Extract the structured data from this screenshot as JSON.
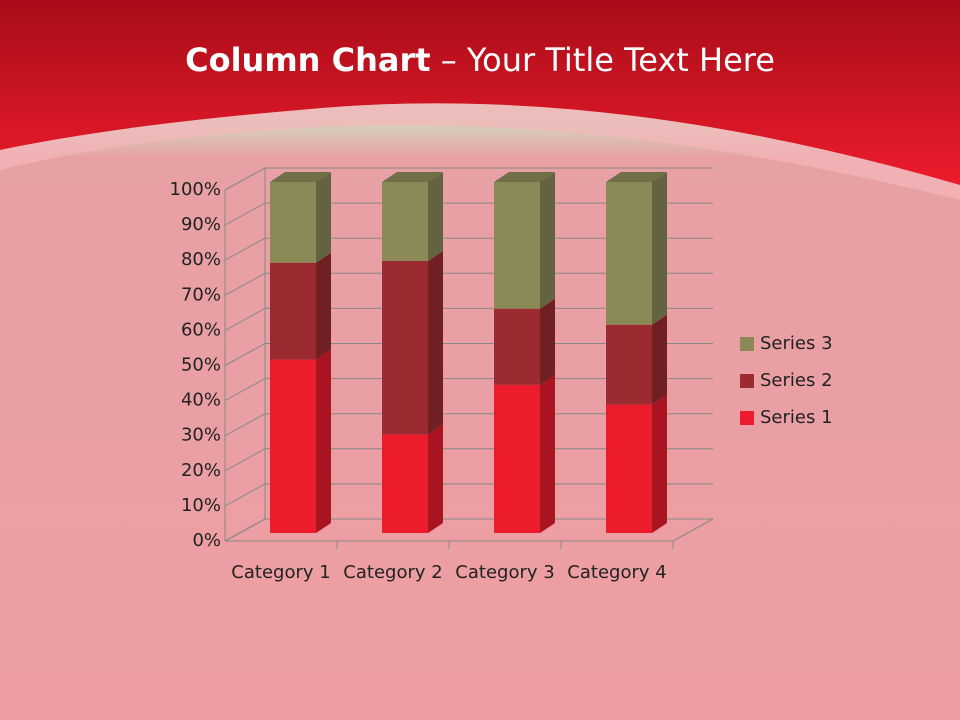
{
  "chart_data": {
    "type": "bar",
    "stacked": "percent",
    "title": [
      "Column Chart",
      "– Your Title Text Here"
    ],
    "categories": [
      "Category 1",
      "Category 2",
      "Category 3",
      "Category 4"
    ],
    "series": [
      {
        "name": "Series 1",
        "color": "#ec1c2c",
        "values": [
          49.4,
          28.1,
          42.2,
          36.6
        ]
      },
      {
        "name": "Series 2",
        "color": "#9b2b30",
        "values": [
          27.6,
          49.4,
          21.7,
          22.8
        ]
      },
      {
        "name": "Series 3",
        "color": "#8b8a57",
        "values": [
          23.0,
          22.5,
          36.1,
          40.7
        ]
      }
    ],
    "ylim": [
      0,
      100
    ],
    "yticks": [
      {
        "value": 0,
        "label": "0%"
      },
      {
        "value": 10,
        "label": "10%"
      },
      {
        "value": 20,
        "label": "20%"
      },
      {
        "value": 30,
        "label": "30%"
      },
      {
        "value": 40,
        "label": "40%"
      },
      {
        "value": 50,
        "label": "50%"
      },
      {
        "value": 60,
        "label": "60%"
      },
      {
        "value": 70,
        "label": "70%"
      },
      {
        "value": 80,
        "label": "80%"
      },
      {
        "value": 90,
        "label": "90%"
      },
      {
        "value": 100,
        "label": "100%"
      }
    ],
    "grid": true,
    "legend": "right"
  }
}
